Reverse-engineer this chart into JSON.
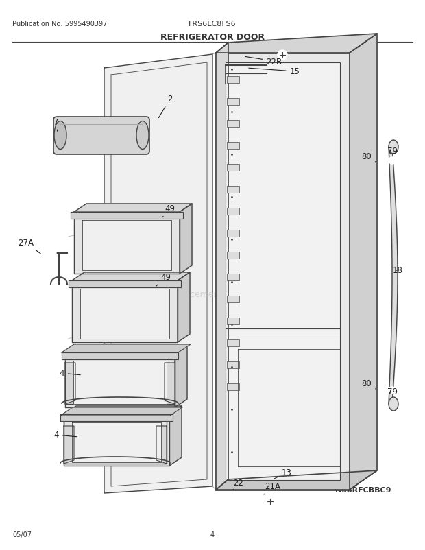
{
  "title": "REFRIGERATOR DOOR",
  "pub_no": "Publication No: 5995490397",
  "model": "FRS6LC8FS6",
  "diagram_id": "N58RFCBBC9",
  "date": "05/07",
  "page": "4",
  "bg_color": "#ffffff",
  "line_color": "#444444",
  "label_color": "#333333",
  "watermark": "eReplacementParts.com"
}
